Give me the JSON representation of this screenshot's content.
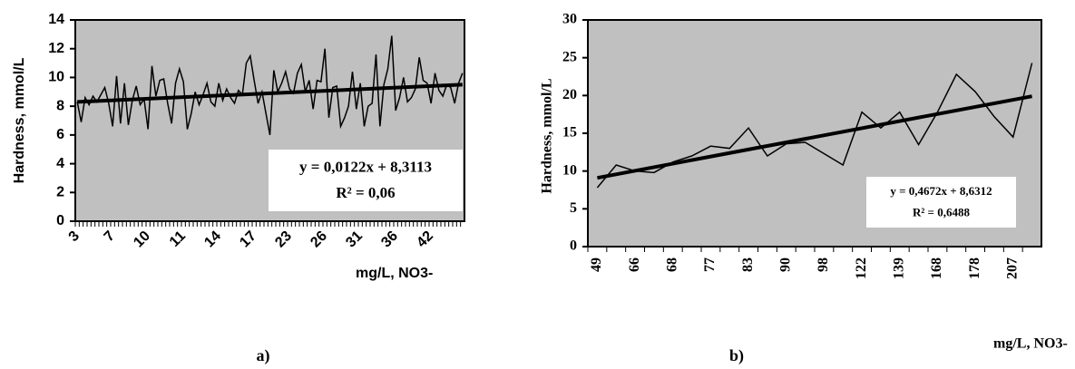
{
  "chart_data": [
    {
      "type": "line",
      "caption": "a)",
      "y_label": "Hardness, mmol/L",
      "x_label": "mg/L,  NO3-",
      "annotations": [
        "y = 0,0122x + 8,3113",
        "R² = 0,06"
      ],
      "categories": [
        "3",
        null,
        null,
        null,
        null,
        null,
        null,
        null,
        null,
        "7",
        null,
        null,
        null,
        null,
        null,
        null,
        null,
        null,
        "10",
        null,
        null,
        null,
        null,
        null,
        null,
        null,
        null,
        "11",
        null,
        null,
        null,
        null,
        null,
        null,
        null,
        null,
        "14",
        null,
        null,
        null,
        null,
        null,
        null,
        null,
        null,
        "17",
        null,
        null,
        null,
        null,
        null,
        null,
        null,
        null,
        "23",
        null,
        null,
        null,
        null,
        null,
        null,
        null,
        null,
        "26",
        null,
        null,
        null,
        null,
        null,
        null,
        null,
        null,
        "31",
        null,
        null,
        null,
        null,
        null,
        null,
        null,
        null,
        "36",
        null,
        null,
        null,
        null,
        null,
        null,
        null,
        null,
        "42",
        null,
        null,
        null,
        null,
        null,
        null,
        null,
        null
      ],
      "values": [
        8.3,
        6.9,
        8.6,
        8.1,
        8.7,
        8.3,
        8.8,
        9.3,
        8.2,
        6.6,
        10.1,
        6.8,
        9.6,
        6.7,
        8.4,
        9.4,
        8.1,
        8.5,
        6.4,
        10.8,
        8.7,
        9.8,
        9.9,
        8.2,
        6.8,
        9.6,
        10.6,
        9.7,
        6.4,
        7.5,
        9.0,
        8.1,
        8.8,
        9.6,
        8.3,
        8.0,
        9.6,
        8.4,
        9.2,
        8.6,
        8.2,
        9.1,
        8.8,
        11.0,
        11.5,
        9.8,
        8.2,
        9.0,
        7.5,
        6.0,
        10.5,
        9.0,
        9.6,
        10.4,
        9.2,
        8.9,
        10.3,
        10.9,
        9.0,
        9.8,
        7.8,
        9.8,
        9.7,
        12.0,
        7.2,
        9.3,
        9.4,
        6.6,
        7.2,
        8.0,
        10.4,
        7.8,
        9.6,
        6.6,
        8.0,
        8.2,
        11.6,
        6.6,
        9.5,
        10.6,
        12.9,
        7.7,
        8.6,
        10.0,
        8.3,
        8.6,
        9.2,
        11.4,
        9.8,
        9.6,
        8.2,
        10.3,
        9.1,
        8.7,
        9.5,
        9.3,
        8.2,
        9.6,
        10.3
      ],
      "trendline": {
        "values": [
          8.3,
          9.5
        ]
      },
      "color": "#000000",
      "background": "#c0c0c0",
      "ylim": [
        0,
        14
      ],
      "yticks": [
        0,
        2,
        4,
        6,
        8,
        10,
        12,
        14
      ]
    },
    {
      "type": "line",
      "caption": "b)",
      "y_label": "Hardness, mmol/L",
      "x_label": "mg/L, NO3-",
      "annotations": [
        "y = 0,4672x + 8,6312",
        "R² = 0,6488"
      ],
      "categories": [
        "49",
        null,
        "66",
        null,
        "68",
        null,
        "77",
        null,
        "83",
        null,
        "90",
        null,
        "98",
        null,
        "122",
        null,
        "139",
        null,
        "168",
        null,
        "178",
        null,
        "207",
        null
      ],
      "values": [
        7.8,
        10.8,
        10.0,
        9.8,
        11.2,
        12.0,
        13.3,
        13.0,
        15.7,
        12.0,
        13.6,
        13.8,
        12.3,
        10.8,
        17.8,
        15.7,
        17.8,
        13.5,
        17.8,
        22.8,
        20.5,
        17.2,
        14.5,
        24.3
      ],
      "trendline": {
        "values": [
          9.1,
          19.9
        ]
      },
      "color": "#000000",
      "background": "#c0c0c0",
      "ylim": [
        0,
        30
      ],
      "yticks": [
        0,
        5,
        10,
        15,
        20,
        25,
        30
      ]
    }
  ]
}
